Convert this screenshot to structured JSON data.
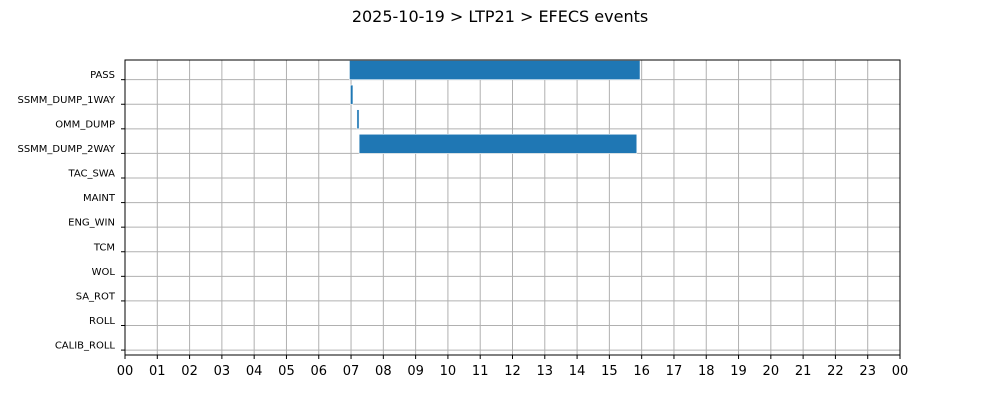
{
  "chart_data": {
    "type": "bar",
    "orientation": "horizontal-timeline",
    "title": "2025-10-19 > LTP21 > EFECS events",
    "xlabel": "",
    "ylabel": "",
    "xlim": [
      0,
      24
    ],
    "grid": true,
    "bar_color": "#1f77b4",
    "x_tick_labels": [
      "00",
      "01",
      "02",
      "03",
      "04",
      "05",
      "06",
      "07",
      "08",
      "09",
      "10",
      "11",
      "12",
      "13",
      "14",
      "15",
      "16",
      "17",
      "18",
      "19",
      "20",
      "21",
      "22",
      "23",
      "00"
    ],
    "categories": [
      "PASS",
      "SSMM_DUMP_1WAY",
      "OMM_DUMP",
      "SSMM_DUMP_2WAY",
      "TAC_SWA",
      "MAINT",
      "ENG_WIN",
      "TCM",
      "WOL",
      "SA_ROT",
      "ROLL",
      "CALIB_ROLL"
    ],
    "events": [
      {
        "category": "PASS",
        "start": 6.95,
        "end": 15.95
      },
      {
        "category": "SSMM_DUMP_1WAY",
        "start": 6.98,
        "end": 7.06
      },
      {
        "category": "OMM_DUMP",
        "start": 7.18,
        "end": 7.25
      },
      {
        "category": "SSMM_DUMP_2WAY",
        "start": 7.25,
        "end": 15.85
      }
    ]
  }
}
